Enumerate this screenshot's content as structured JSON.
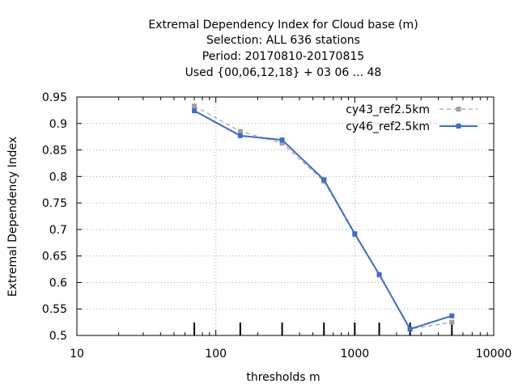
{
  "chart_data": {
    "type": "line",
    "title_lines": [
      "Extremal Dependency Index  for Cloud base (m)",
      "Selection: ALL    636 stations",
      "Period: 20170810-20170815",
      "Used {00,06,12,18} + 03 06 ... 48"
    ],
    "xlabel": "thresholds m",
    "ylabel": "Extremal Dependency Index",
    "x_scale": "log",
    "xlim": [
      10,
      10000
    ],
    "ylim": [
      0.5,
      0.95
    ],
    "x_ticks": [
      10,
      100,
      1000,
      10000
    ],
    "x_tick_labels": [
      "10",
      "100",
      "1000",
      "10000"
    ],
    "y_ticks": [
      0.5,
      0.55,
      0.6,
      0.65,
      0.7,
      0.75,
      0.8,
      0.85,
      0.9,
      0.95
    ],
    "y_tick_labels": [
      "0.5",
      "0.55",
      "0.6",
      "0.65",
      "0.7",
      "0.75",
      "0.8",
      "0.85",
      "0.9",
      "0.95"
    ],
    "grid": true,
    "legend_position": "top-right",
    "x": [
      70,
      150,
      300,
      600,
      1000,
      1500,
      2500,
      5000
    ],
    "series": [
      {
        "name": "cy43_ref2.5km",
        "color": "#a0a0a0",
        "dash": true,
        "values": [
          0.933,
          0.885,
          0.863,
          0.791,
          0.69,
          0.614,
          0.512,
          0.525
        ]
      },
      {
        "name": "cy46_ref2.5km",
        "color": "#3b6bd1",
        "dash": false,
        "values": [
          0.924,
          0.877,
          0.869,
          0.794,
          0.692,
          0.615,
          0.512,
          0.537
        ]
      }
    ],
    "observation_count_bars": {
      "x": [
        70,
        150,
        300,
        600,
        1000,
        1500,
        2500,
        5000
      ],
      "relative_height": [
        1,
        1,
        1,
        1,
        1,
        1,
        1,
        1
      ]
    }
  }
}
